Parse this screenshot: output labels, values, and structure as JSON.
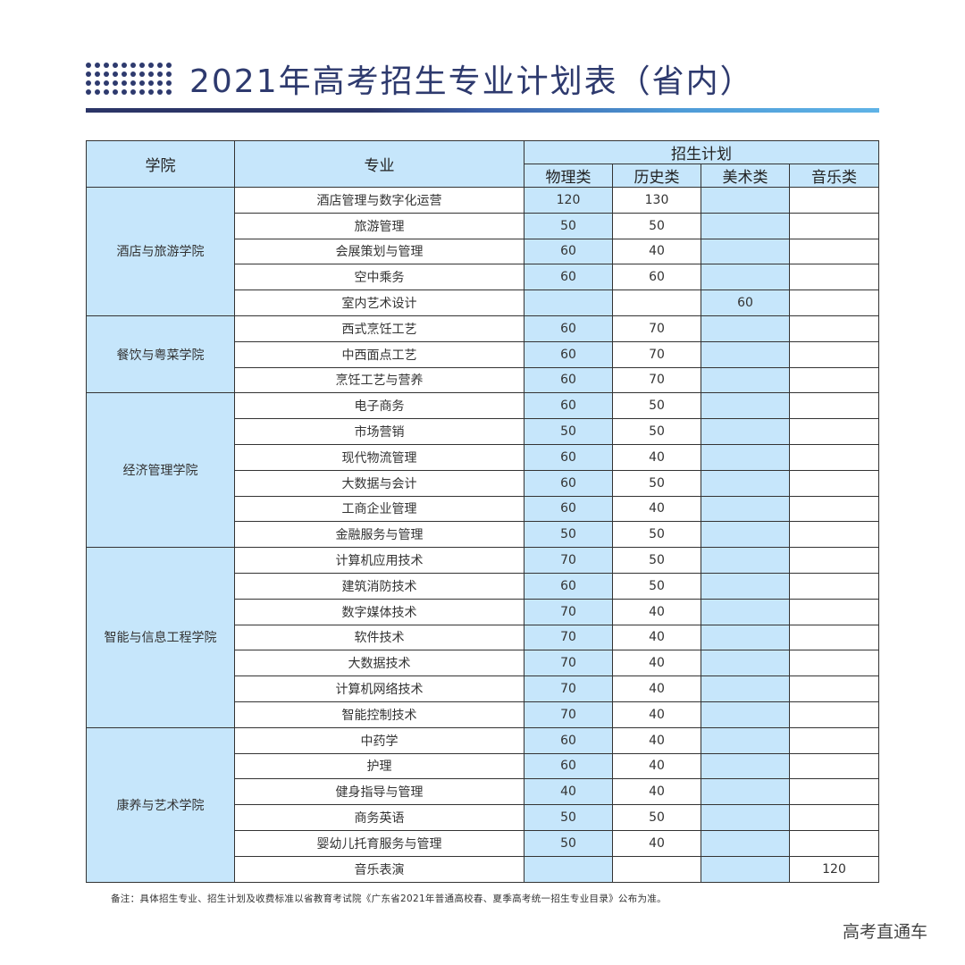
{
  "title": "2021年高考招生专业计划表（省内）",
  "headers": {
    "college": "学院",
    "major": "专业",
    "plan": "招生计划",
    "physics": "物理类",
    "history": "历史类",
    "art": "美术类",
    "music": "音乐类"
  },
  "colors": {
    "title": "#2e3a6e",
    "header_fill": "#c6e6fb",
    "border": "#333333"
  },
  "groups": [
    {
      "college": "酒店与旅游学院",
      "rows": [
        {
          "major": "酒店管理与数字化运营",
          "physics": "120",
          "history": "130",
          "art": "",
          "music": ""
        },
        {
          "major": "旅游管理",
          "physics": "50",
          "history": "50",
          "art": "",
          "music": ""
        },
        {
          "major": "会展策划与管理",
          "physics": "60",
          "history": "40",
          "art": "",
          "music": ""
        },
        {
          "major": "空中乘务",
          "physics": "60",
          "history": "60",
          "art": "",
          "music": ""
        },
        {
          "major": "室内艺术设计",
          "physics": "",
          "history": "",
          "art": "60",
          "music": ""
        }
      ]
    },
    {
      "college": "餐饮与粤菜学院",
      "rows": [
        {
          "major": "西式烹饪工艺",
          "physics": "60",
          "history": "70",
          "art": "",
          "music": ""
        },
        {
          "major": "中西面点工艺",
          "physics": "60",
          "history": "70",
          "art": "",
          "music": ""
        },
        {
          "major": "烹饪工艺与营养",
          "physics": "60",
          "history": "70",
          "art": "",
          "music": ""
        }
      ]
    },
    {
      "college": "经济管理学院",
      "rows": [
        {
          "major": "电子商务",
          "physics": "60",
          "history": "50",
          "art": "",
          "music": ""
        },
        {
          "major": "市场营销",
          "physics": "50",
          "history": "50",
          "art": "",
          "music": ""
        },
        {
          "major": "现代物流管理",
          "physics": "60",
          "history": "40",
          "art": "",
          "music": ""
        },
        {
          "major": "大数据与会计",
          "physics": "60",
          "history": "50",
          "art": "",
          "music": ""
        },
        {
          "major": "工商企业管理",
          "physics": "60",
          "history": "40",
          "art": "",
          "music": ""
        },
        {
          "major": "金融服务与管理",
          "physics": "50",
          "history": "50",
          "art": "",
          "music": ""
        }
      ]
    },
    {
      "college": "智能与信息工程学院",
      "rows": [
        {
          "major": "计算机应用技术",
          "physics": "70",
          "history": "50",
          "art": "",
          "music": ""
        },
        {
          "major": "建筑消防技术",
          "physics": "60",
          "history": "50",
          "art": "",
          "music": ""
        },
        {
          "major": "数字媒体技术",
          "physics": "70",
          "history": "40",
          "art": "",
          "music": ""
        },
        {
          "major": "软件技术",
          "physics": "70",
          "history": "40",
          "art": "",
          "music": ""
        },
        {
          "major": "大数据技术",
          "physics": "70",
          "history": "40",
          "art": "",
          "music": ""
        },
        {
          "major": "计算机网络技术",
          "physics": "70",
          "history": "40",
          "art": "",
          "music": ""
        },
        {
          "major": "智能控制技术",
          "physics": "70",
          "history": "40",
          "art": "",
          "music": ""
        }
      ]
    },
    {
      "college": "康养与艺术学院",
      "rows": [
        {
          "major": "中药学",
          "physics": "60",
          "history": "40",
          "art": "",
          "music": ""
        },
        {
          "major": "护理",
          "physics": "60",
          "history": "40",
          "art": "",
          "music": ""
        },
        {
          "major": "健身指导与管理",
          "physics": "40",
          "history": "40",
          "art": "",
          "music": ""
        },
        {
          "major": "商务英语",
          "physics": "50",
          "history": "50",
          "art": "",
          "music": ""
        },
        {
          "major": "婴幼儿托育服务与管理",
          "physics": "50",
          "history": "40",
          "art": "",
          "music": ""
        },
        {
          "major": "音乐表演",
          "physics": "",
          "history": "",
          "art": "",
          "music": "120"
        }
      ]
    }
  ],
  "note": "备注：具体招生专业、招生计划及收费标准以省教育考试院《广东省2021年普通高校春、夏季高考统一招生专业目录》公布为准。",
  "watermark": "高考直通车"
}
